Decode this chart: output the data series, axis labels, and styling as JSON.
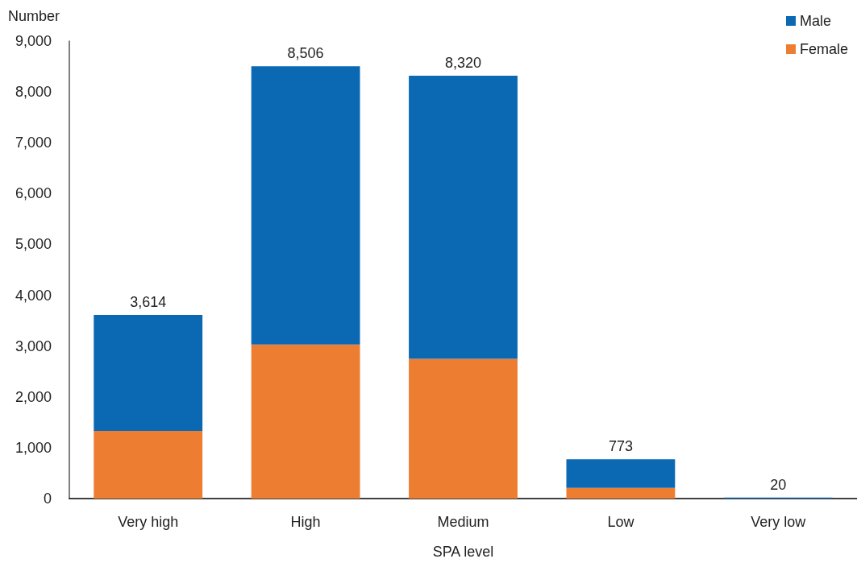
{
  "chart_data": {
    "type": "bar",
    "stacked": true,
    "ylabel": "Number",
    "xlabel": "SPA level",
    "categories": [
      "Very high",
      "High",
      "Medium",
      "Low",
      "Very low"
    ],
    "series": [
      {
        "name": "Female",
        "color": "#ed7d31",
        "values": [
          1330,
          3030,
          2750,
          210,
          0
        ]
      },
      {
        "name": "Male",
        "color": "#0b69b3",
        "values": [
          2284,
          5476,
          5570,
          563,
          20
        ]
      }
    ],
    "totals": [
      "3,614",
      "8,506",
      "8,320",
      "773",
      "20"
    ],
    "ylim": [
      0,
      9000
    ],
    "yticks": [
      {
        "value": 0,
        "label": "0"
      },
      {
        "value": 1000,
        "label": "1,000"
      },
      {
        "value": 2000,
        "label": "2,000"
      },
      {
        "value": 3000,
        "label": "3,000"
      },
      {
        "value": 4000,
        "label": "4,000"
      },
      {
        "value": 5000,
        "label": "5,000"
      },
      {
        "value": 6000,
        "label": "6,000"
      },
      {
        "value": 7000,
        "label": "7,000"
      },
      {
        "value": 8000,
        "label": "8,000"
      },
      {
        "value": 9000,
        "label": "9,000"
      }
    ],
    "grid": false,
    "legend": "top right"
  }
}
